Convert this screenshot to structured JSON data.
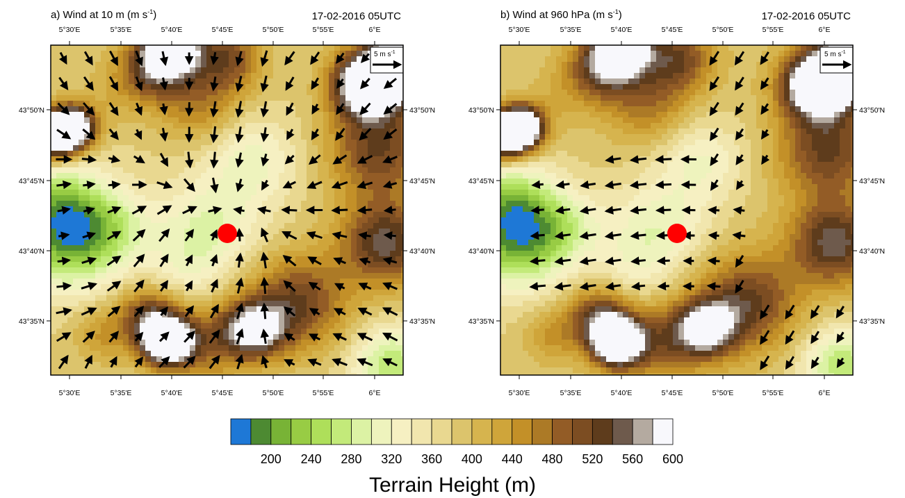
{
  "panels": [
    {
      "id": "a",
      "title": "a) Wind at 10 m (m s",
      "title_exp": "-1",
      "title_close": ")",
      "datetime": "17-02-2016 05UTC",
      "ref_vector": {
        "label": "5 m s",
        "exp": "-1"
      }
    },
    {
      "id": "b",
      "title": "b) Wind at 960 hPa (m s",
      "title_exp": "-1",
      "title_close": ")",
      "datetime": "17-02-2016 05UTC",
      "ref_vector": {
        "label": "5 m s",
        "exp": "-1"
      }
    }
  ],
  "map": {
    "lon_ticks": [
      "5°30'E",
      "5°35'E",
      "5°40'E",
      "5°45'E",
      "5°50'E",
      "5°55'E",
      "6°E"
    ],
    "lat_ticks": [
      "43°50'N",
      "43°45'N",
      "43°40'N",
      "43°35'N"
    ],
    "marker": {
      "color": "#ff0000"
    }
  },
  "colorbar": {
    "colors": [
      "#1e78d6",
      "#4d8a32",
      "#78b336",
      "#98cc44",
      "#aedf5a",
      "#c3ea7a",
      "#dcf2a4",
      "#eef3bd",
      "#f6f0c2",
      "#f1e6ae",
      "#e9d890",
      "#dcc46c",
      "#d6b44e",
      "#cfa53a",
      "#c39028",
      "#ac7a26",
      "#935c26",
      "#7c4d22",
      "#5e3c1c",
      "#6e5a4c",
      "#b4aaa0",
      "#f8f8fc"
    ],
    "tick_labels": [
      "200",
      "240",
      "280",
      "320",
      "360",
      "400",
      "440",
      "480",
      "520",
      "560",
      "600"
    ],
    "title": "Terrain Height (m)"
  }
}
